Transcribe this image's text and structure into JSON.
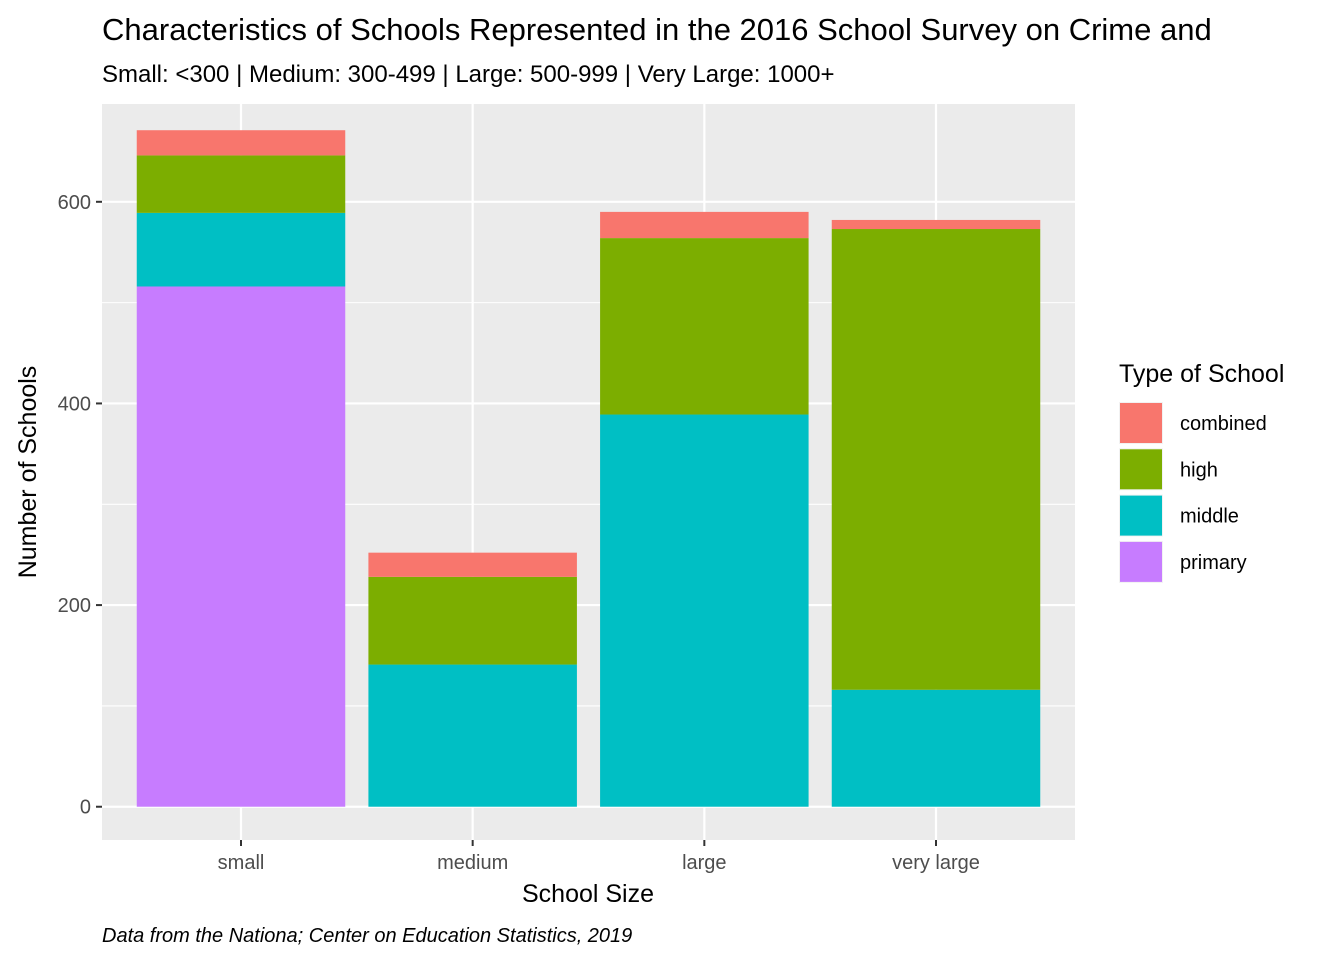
{
  "chart_data": {
    "type": "bar",
    "stacked": true,
    "title": "Characteristics of Schools Represented in the 2016 School Survey on Crime and",
    "subtitle": "Small: <300 | Medium: 300-499 | Large: 500-999 | Very Large: 1000+",
    "xlabel": "School Size",
    "ylabel": "Number of Schools",
    "caption": "Data from the Nationa; Center on Education Statistics, 2019",
    "categories": [
      "small",
      "medium",
      "large",
      "very large"
    ],
    "ylim": [
      -33,
      697
    ],
    "yticks": [
      0,
      200,
      400,
      600
    ],
    "grid": true,
    "legend": {
      "title": "Type of School",
      "position": "right"
    },
    "series": [
      {
        "name": "primary",
        "color": "#C77CFF",
        "values": [
          516,
          0,
          0,
          0
        ]
      },
      {
        "name": "middle",
        "color": "#00BFC4",
        "values": [
          73,
          141,
          389,
          116
        ]
      },
      {
        "name": "high",
        "color": "#7CAE00",
        "values": [
          57,
          87,
          175,
          457
        ]
      },
      {
        "name": "combined",
        "color": "#F8766D",
        "values": [
          25,
          24,
          26,
          9
        ]
      }
    ],
    "legend_order": [
      "combined",
      "high",
      "middle",
      "primary"
    ]
  }
}
